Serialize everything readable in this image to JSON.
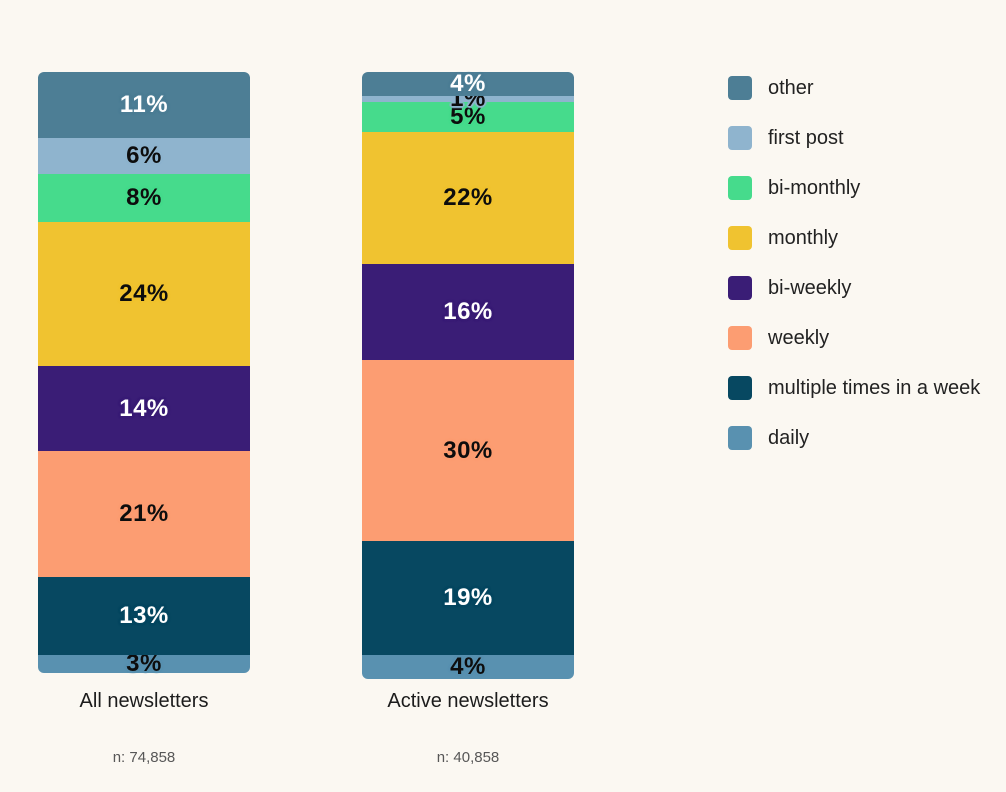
{
  "canvas": {
    "background": "#FBF8F2"
  },
  "chart_data": {
    "type": "bar",
    "variant": "stacked-percentage-column",
    "title": "",
    "unit": "%",
    "grid": false,
    "ylim": [
      0,
      100
    ],
    "legend_position": "right",
    "value_labels": "percent-inside-segment",
    "categories": [
      "All newsletters",
      "Active newsletters"
    ],
    "sample_labels": [
      "n: 74,858",
      "n: 40,858"
    ],
    "series": [
      {
        "name": "other",
        "color": "#4D7E95",
        "label_color": "#FFFFFF",
        "values": [
          11,
          4
        ]
      },
      {
        "name": "first post",
        "color": "#8FB4CE",
        "label_color": "#0D0D0D",
        "values": [
          6,
          1
        ]
      },
      {
        "name": "bi-monthly",
        "color": "#46DB8C",
        "label_color": "#0D0D0D",
        "values": [
          8,
          5
        ]
      },
      {
        "name": "monthly",
        "color": "#F0C330",
        "label_color": "#0D0D0D",
        "values": [
          24,
          22
        ]
      },
      {
        "name": "bi-weekly",
        "color": "#3A1D76",
        "label_color": "#FFFFFF",
        "values": [
          14,
          16
        ]
      },
      {
        "name": "weekly",
        "color": "#FC9D72",
        "label_color": "#0D0D0D",
        "values": [
          21,
          30
        ]
      },
      {
        "name": "multiple times in a week",
        "color": "#074861",
        "label_color": "#FFFFFF",
        "values": [
          13,
          19
        ]
      },
      {
        "name": "daily",
        "color": "#5991B0",
        "label_color": "#0D0D0D",
        "values": [
          3,
          4
        ]
      }
    ]
  }
}
